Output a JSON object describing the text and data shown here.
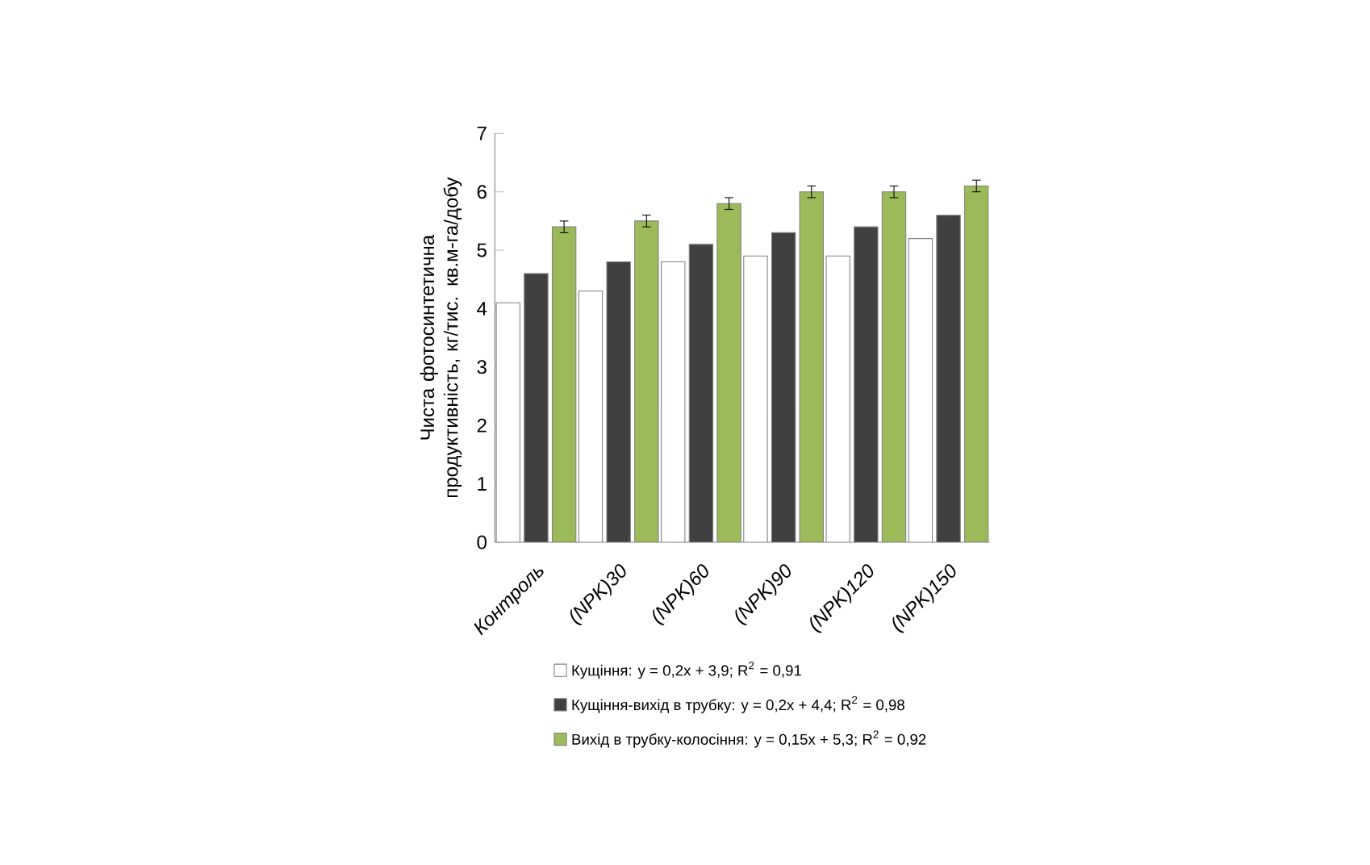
{
  "chart_data": {
    "type": "bar",
    "ylabel": "Чиста фотосинтетична продуктивність, кг/тис. кв.м-га/добу",
    "categories": [
      "Контроль",
      "(NPK)30",
      "(NPK)60",
      "(NPK)90",
      "(NPK)120",
      "(NPK)150"
    ],
    "series": [
      {
        "name": "Кущіння: y = 0,2x + 3,9; R$^{2}$ = 0,91",
        "color": "#ffffff",
        "values": [
          4.1,
          4.3,
          4.8,
          4.9,
          4.9,
          5.2
        ]
      },
      {
        "name": "Кущіння-вихід в трубку: y = 0,2x + 4,4; R$^{2}$ = 0,98",
        "color": "#404040",
        "values": [
          4.6,
          4.8,
          5.1,
          5.3,
          5.4,
          5.6
        ]
      },
      {
        "name": "Вихід в трубку-колосіння: y = 0,15x + 5,3; R$^{2}$ = 0,92",
        "color": "#9bbb59",
        "values": [
          5.4,
          5.5,
          5.8,
          6.0,
          6.0,
          6.1
        ],
        "errors": [
          0.1,
          0.1,
          0.1,
          0.1,
          0.1,
          0.1
        ]
      }
    ],
    "ylim": [
      0,
      7
    ],
    "yticks": [
      0,
      1,
      2,
      3,
      4,
      5,
      6,
      7
    ],
    "grid": false,
    "legend": "bottom"
  }
}
